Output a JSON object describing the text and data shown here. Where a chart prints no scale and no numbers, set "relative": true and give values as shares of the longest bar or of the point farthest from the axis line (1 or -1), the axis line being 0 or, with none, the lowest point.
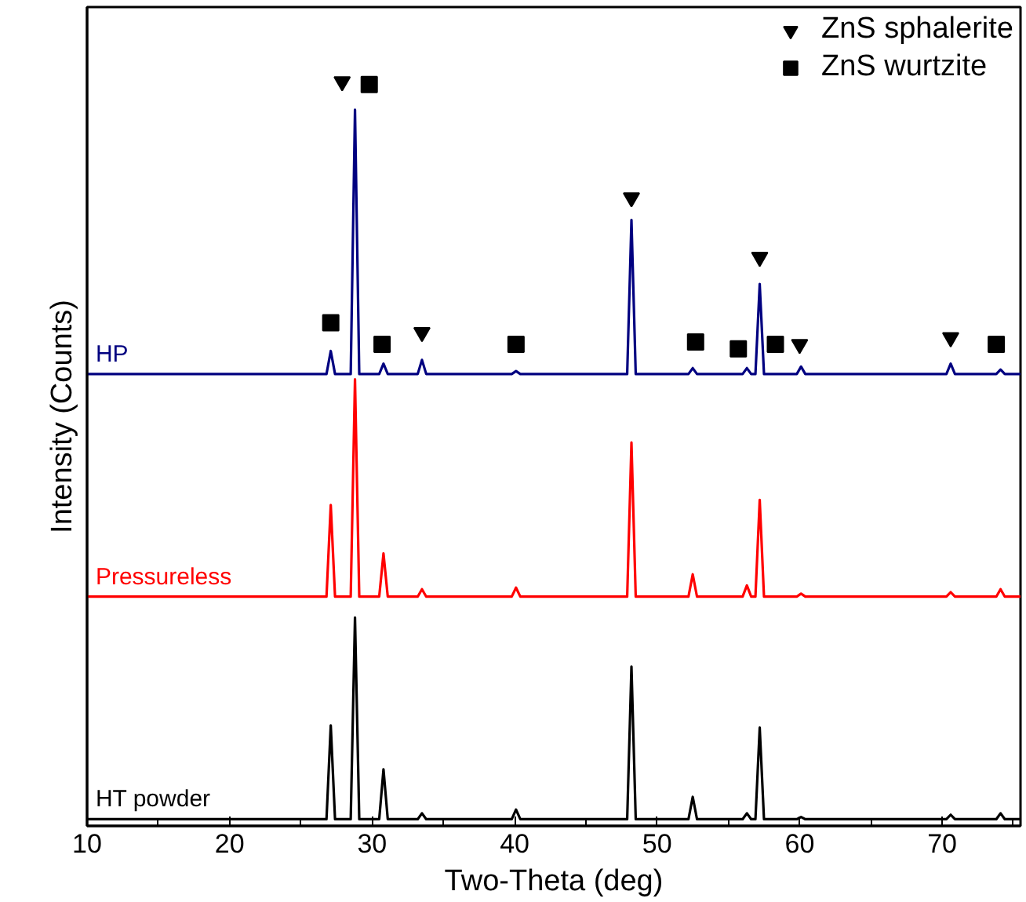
{
  "chart_data": {
    "type": "line",
    "xlabel": "Two-Theta (deg)",
    "ylabel": "Intensity (Counts)",
    "relative": true,
    "tick_labels": "x",
    "legend": "top right",
    "grid": false,
    "xlim": [
      10,
      75.5
    ],
    "xticks": [
      10,
      {
        "value": 15,
        "label": null
      },
      20,
      {
        "value": 25,
        "label": null
      },
      30,
      {
        "value": 35,
        "label": null
      },
      40,
      {
        "value": 45,
        "label": null
      },
      50,
      {
        "value": 55,
        "label": null
      },
      60,
      {
        "value": 65,
        "label": null
      },
      70,
      {
        "value": 75,
        "label": null
      }
    ],
    "x": [
      10,
      26.8,
      27.1,
      27.4,
      28.5,
      28.8,
      29.1,
      30.5,
      30.8,
      31.1,
      33.2,
      33.5,
      33.8,
      39.8,
      40.1,
      40.4,
      47.9,
      48.2,
      48.5,
      52.2,
      52.5,
      52.8,
      56.0,
      56.3,
      56.6,
      56.9,
      57.2,
      57.5,
      59.8,
      60.1,
      60.4,
      70.3,
      70.6,
      70.9,
      73.8,
      74.1,
      74.4,
      75.5
    ],
    "series": [
      {
        "name": "HP",
        "color": "#000080",
        "values": [
          0.607,
          0.607,
          0.638,
          0.607,
          0.607,
          0.962,
          0.607,
          0.607,
          0.621,
          0.607,
          0.607,
          0.626,
          0.607,
          0.607,
          0.611,
          0.607,
          0.607,
          0.814,
          0.607,
          0.607,
          0.615,
          0.607,
          0.607,
          0.615,
          0.607,
          0.607,
          0.728,
          0.607,
          0.607,
          0.617,
          0.607,
          0.607,
          0.621,
          0.607,
          0.607,
          0.613,
          0.607,
          0.607
        ]
      },
      {
        "name": "Pressureless",
        "color": "#ff0000",
        "values": [
          0.308,
          0.308,
          0.431,
          0.308,
          0.308,
          0.6,
          0.308,
          0.308,
          0.366,
          0.308,
          0.308,
          0.318,
          0.308,
          0.308,
          0.32,
          0.308,
          0.308,
          0.515,
          0.308,
          0.308,
          0.338,
          0.308,
          0.308,
          0.323,
          0.308,
          0.308,
          0.438,
          0.308,
          0.308,
          0.312,
          0.308,
          0.308,
          0.314,
          0.308,
          0.308,
          0.318,
          0.308,
          0.308
        ]
      },
      {
        "name": "HT powder",
        "color": "#000000",
        "values": [
          0.009,
          0.009,
          0.135,
          0.009,
          0.009,
          0.28,
          0.009,
          0.009,
          0.076,
          0.009,
          0.009,
          0.017,
          0.009,
          0.009,
          0.022,
          0.009,
          0.009,
          0.214,
          0.009,
          0.009,
          0.039,
          0.009,
          0.009,
          0.017,
          0.009,
          0.009,
          0.132,
          0.009,
          0.009,
          0.012,
          0.009,
          0.009,
          0.015,
          0.009,
          0.009,
          0.017,
          0.009,
          0.009
        ]
      },
      {
        "name": "ZnS sphalerite",
        "type": "scatter",
        "marker": "triangle",
        "color": "#000000",
        "x": [
          27.9,
          33.5,
          48.2,
          57.2,
          60.0,
          70.6
        ],
        "values": [
          1.0,
          0.663,
          0.844,
          0.764,
          0.647,
          0.656
        ]
      },
      {
        "name": "ZnS wurtzite",
        "type": "scatter",
        "marker": "square",
        "color": "#000000",
        "x": [
          29.8,
          27.1,
          30.7,
          40.1,
          52.7,
          55.7,
          58.3,
          73.8
        ],
        "values": [
          0.996,
          0.676,
          0.647,
          0.647,
          0.65,
          0.641,
          0.647,
          0.647
        ]
      }
    ]
  }
}
